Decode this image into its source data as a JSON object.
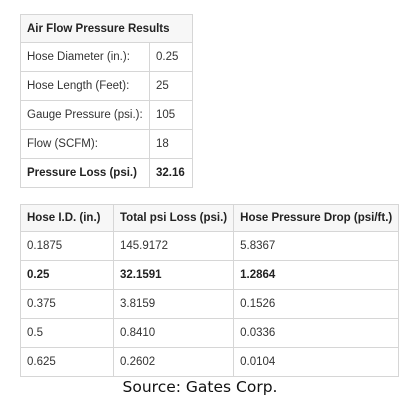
{
  "results": {
    "title": "Air Flow Pressure Results",
    "rows": [
      {
        "label": "Hose Diameter (in.):",
        "value": "0.25"
      },
      {
        "label": "Hose Length (Feet):",
        "value": "25"
      },
      {
        "label": "Gauge Pressure (psi.):",
        "value": "105"
      },
      {
        "label": "Flow (SCFM):",
        "value": "18"
      },
      {
        "label": "Pressure Loss (psi.)",
        "value": "32.16"
      }
    ]
  },
  "loss_table": {
    "headers": [
      "Hose I.D. (in.)",
      "Total psi Loss (psi.)",
      "Hose Pressure Drop (psi/ft.)"
    ],
    "rows": [
      [
        "0.1875",
        "145.9172",
        "5.8367"
      ],
      [
        "0.25",
        "32.1591",
        "1.2864"
      ],
      [
        "0.375",
        "3.8159",
        "0.1526"
      ],
      [
        "0.5",
        "0.8410",
        "0.0336"
      ],
      [
        "0.625",
        "0.2602",
        "0.0104"
      ]
    ]
  },
  "source": "Source: Gates Corp."
}
